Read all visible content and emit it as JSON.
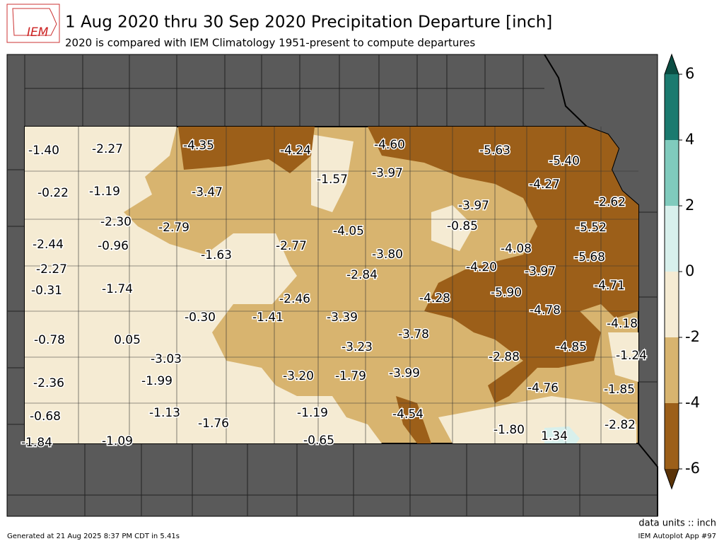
{
  "header": {
    "logo": "IEM",
    "title": "1 Aug 2020 thru 30 Sep 2020 Precipitation Departure [inch]",
    "subtitle": "2020 is compared with IEM Climatology 1951-present to compute departures"
  },
  "map": {
    "labels": [
      "-1.40",
      "-2.27",
      "-4.35",
      "-4.24",
      "-4.60",
      "-5.63",
      "-5.40",
      "-1.57",
      "-3.97",
      "-0.22",
      "-1.19",
      "-3.47",
      "-4.27",
      "-2.62",
      "-3.97",
      "-2.30",
      "-2.79",
      "-0.85",
      "-5.52",
      "-4.05",
      "-2.44",
      "-0.96",
      "-1.63",
      "-2.77",
      "-4.08",
      "-3.80",
      "-5.68",
      "-2.27",
      "-4.20",
      "-3.97",
      "-2.84",
      "-0.31",
      "-1.74",
      "-4.71",
      "-5.90",
      "-2.46",
      "-4.28",
      "-4.78",
      "-0.30",
      "-1.41",
      "-3.39",
      "-4.18",
      "-3.78",
      "-0.78",
      "0.05",
      "-3.23",
      "-4.85",
      "-2.88",
      "-3.03",
      "-1.24",
      "-3.20",
      "-1.79",
      "-3.99",
      "-2.36",
      "-1.99",
      "-4.76",
      "-1.85",
      "-4.54",
      "-0.68",
      "-1.13",
      "-1.19",
      "-1.76",
      "-1.80",
      "1.34",
      "-2.82",
      "-1.84",
      "-1.09",
      "-0.65"
    ]
  },
  "colorbar": {
    "ticks": [
      6,
      4,
      2,
      0,
      -2,
      -4,
      -6
    ],
    "colors": [
      "#5a3308",
      "#9c5f19",
      "#d8b46f",
      "#f5ebd3",
      "#d8f0ec",
      "#80cbbd",
      "#1b7a6f",
      "#0b4d43"
    ]
  },
  "footer": {
    "units": "data units :: inch",
    "generated": "Generated at 21 Aug 2025 8:37 PM CDT in 5.41s",
    "app": "IEM Autoplot App #97"
  }
}
